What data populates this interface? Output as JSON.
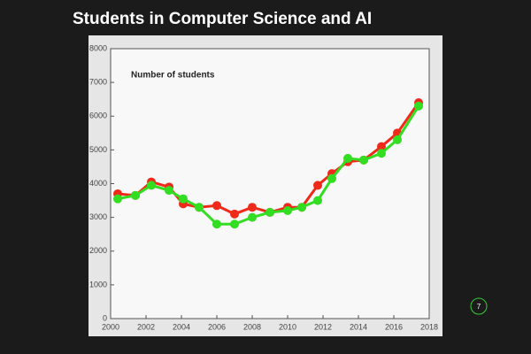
{
  "chart_data": {
    "type": "line",
    "title": "Students in Computer Science and AI",
    "y_label": "Number of students",
    "slide_number": "7",
    "x": [
      2000.4,
      2001.4,
      2002.3,
      2003.3,
      2004.1,
      2005.0,
      2006.0,
      2007.0,
      2008.0,
      2009.0,
      2010.0,
      2010.8,
      2011.7,
      2012.5,
      2013.4,
      2014.3,
      2015.3,
      2016.2,
      2017.4
    ],
    "series": [
      {
        "color": "#f02a1a",
        "values": [
          3700,
          3650,
          4050,
          3900,
          3400,
          3300,
          3350,
          3100,
          3300,
          3150,
          3300,
          3300,
          3950,
          4300,
          4650,
          4700,
          5100,
          5500,
          6400
        ]
      },
      {
        "color": "#33dd22",
        "values": [
          3550,
          3650,
          3950,
          3800,
          3550,
          3300,
          2800,
          2800,
          3000,
          3150,
          3200,
          3300,
          3500,
          4150,
          4750,
          4700,
          4900,
          5300,
          6300
        ]
      }
    ],
    "xlim": [
      2000,
      2018
    ],
    "xticks": [
      2000,
      2002,
      2004,
      2006,
      2008,
      2010,
      2012,
      2014,
      2016,
      2018
    ],
    "ylim": [
      0,
      8000
    ],
    "yticks": [
      0,
      1000,
      2000,
      3000,
      4000,
      5000,
      6000,
      7000,
      8000
    ]
  }
}
